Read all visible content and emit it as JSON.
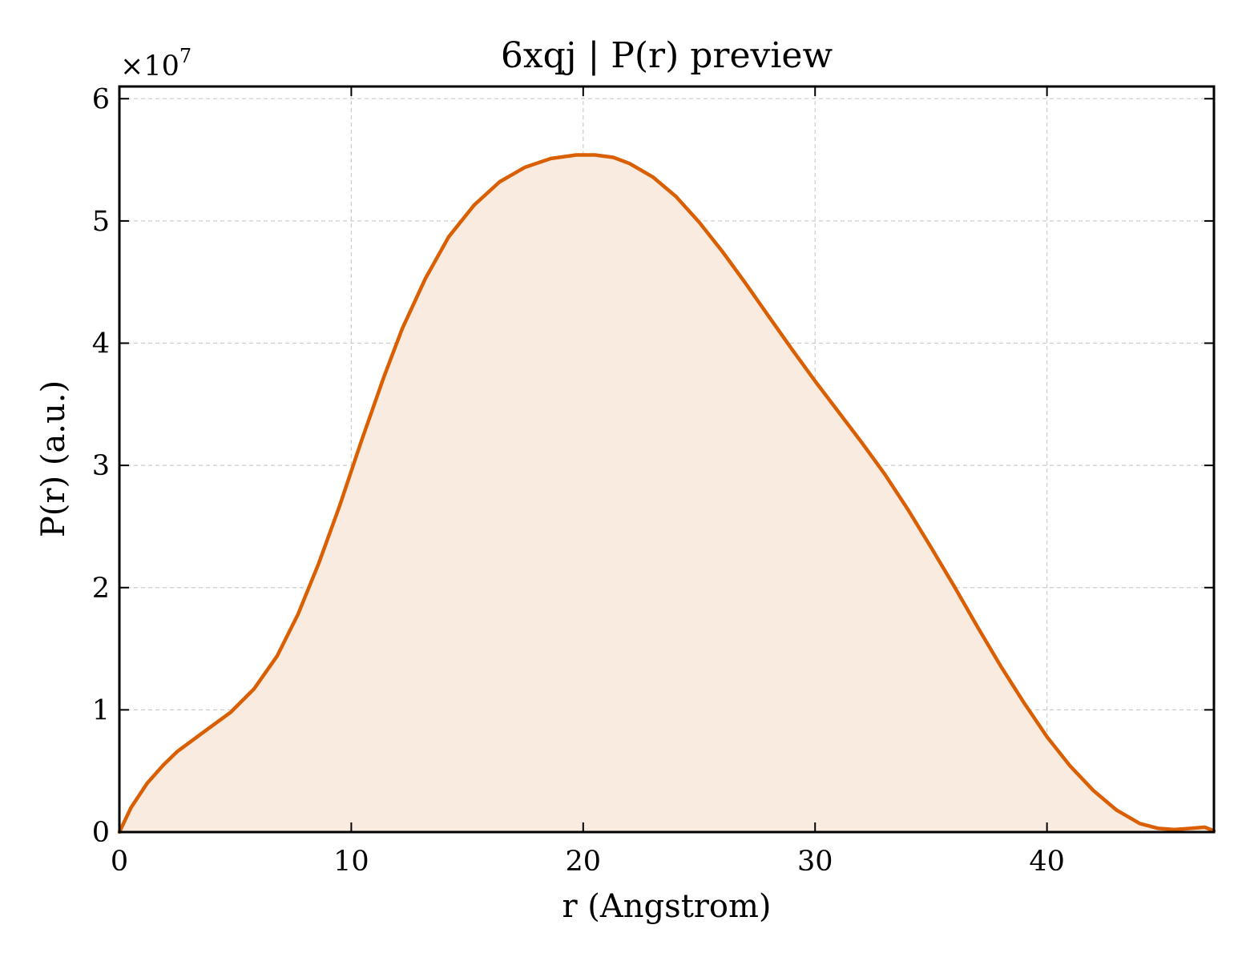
{
  "chart_data": {
    "type": "area",
    "title": "6xqj | P(r) preview",
    "xlabel": "r (Angstrom)",
    "ylabel": "P(r) (a.u.)",
    "y_multiplier": "×10",
    "y_multiplier_exp": "7",
    "xlim": [
      0,
      47.2
    ],
    "ylim": [
      0,
      6.1
    ],
    "x_ticks": [
      0,
      10,
      20,
      30,
      40
    ],
    "y_ticks": [
      0,
      1,
      2,
      3,
      4,
      5,
      6
    ],
    "grid": true,
    "line_color": "#d95f02",
    "fill_color": "#f9ebe0",
    "series": [
      {
        "x": [
          0,
          0.5,
          1.2,
          1.9,
          2.5,
          3.5,
          4.8,
          5.8,
          6.8,
          7.7,
          8.6,
          9.5,
          10.4,
          11.4,
          12.2,
          13.2,
          14.2,
          15.3,
          16.4,
          17.5,
          18.6,
          19.7,
          20.5,
          21.3,
          22.0,
          23.0,
          24.0,
          25.0,
          26.0,
          27.0,
          28.0,
          29.0,
          30.0,
          31.0,
          32.0,
          33.0,
          34.0,
          35.0,
          36.0,
          37.0,
          38.0,
          39.0,
          40.0,
          41.0,
          42.0,
          43.0,
          44.0,
          44.8,
          45.5,
          46.2,
          46.8,
          47.2
        ],
        "y": [
          0,
          0.2,
          0.4,
          0.55,
          0.66,
          0.8,
          0.98,
          1.17,
          1.44,
          1.78,
          2.2,
          2.67,
          3.18,
          3.72,
          4.12,
          4.53,
          4.87,
          5.13,
          5.32,
          5.44,
          5.51,
          5.54,
          5.54,
          5.52,
          5.47,
          5.36,
          5.2,
          4.99,
          4.75,
          4.49,
          4.22,
          3.95,
          3.69,
          3.44,
          3.19,
          2.93,
          2.64,
          2.33,
          2.01,
          1.68,
          1.36,
          1.06,
          0.78,
          0.54,
          0.34,
          0.18,
          0.07,
          0.03,
          0.02,
          0.03,
          0.04,
          0.01
        ]
      }
    ]
  }
}
